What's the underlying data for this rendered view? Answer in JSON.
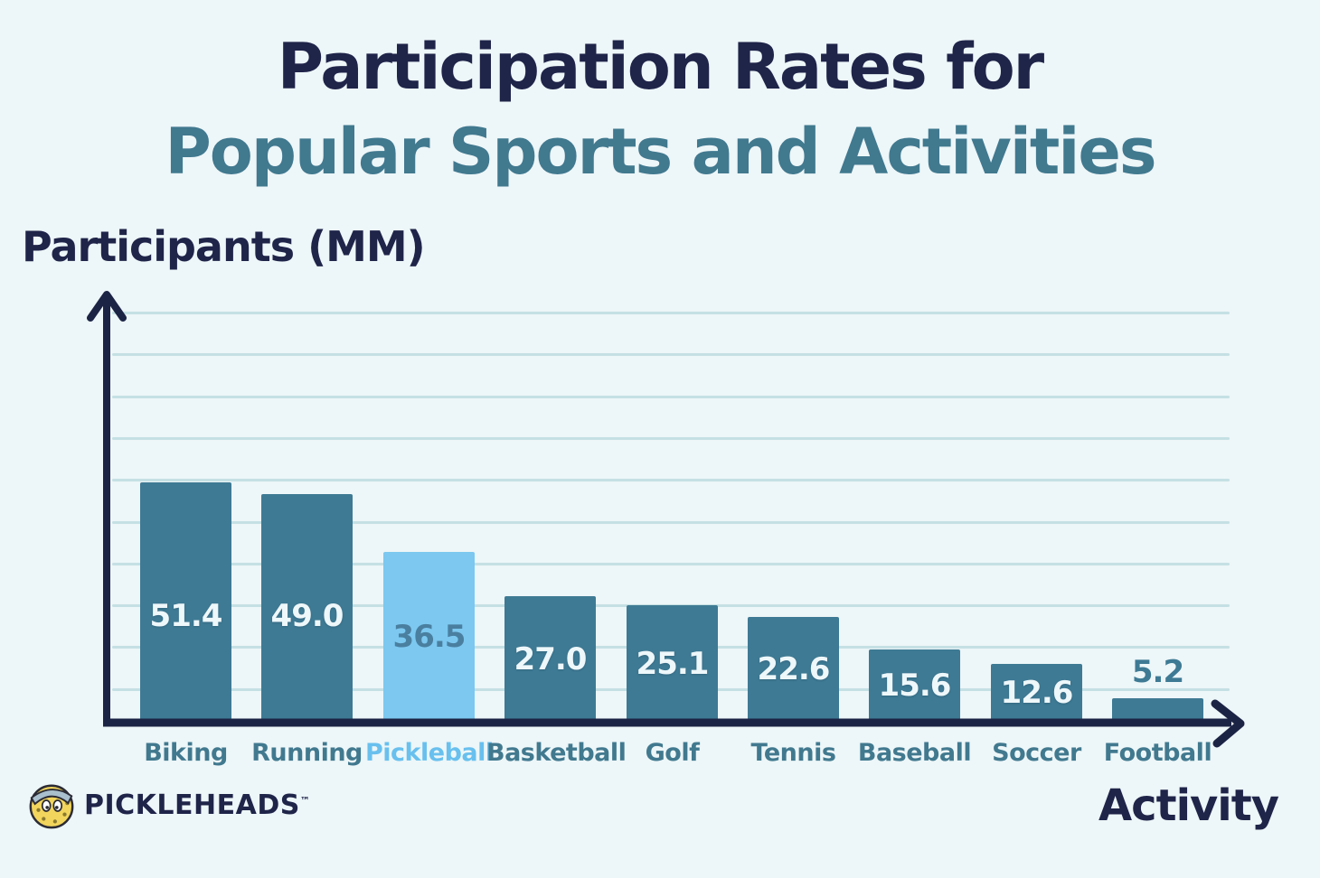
{
  "title": {
    "line1": "Participation Rates for",
    "line2": "Popular Sports and Activities"
  },
  "axes": {
    "y_label": "Participants (MM)",
    "x_label": "Activity"
  },
  "brand": {
    "display": "PICKLEHEADS",
    "tm": "™",
    "logo_icon": "pickleball-face-icon"
  },
  "chart_data": {
    "type": "bar",
    "title": "Participation Rates for Popular Sports and Activities",
    "xlabel": "Activity",
    "ylabel": "Participants (MM)",
    "categories": [
      "Biking",
      "Running",
      "Pickleball",
      "Basketball",
      "Golf",
      "Tennis",
      "Baseball",
      "Soccer",
      "Football"
    ],
    "values": [
      51.4,
      49.0,
      36.5,
      27.0,
      25.1,
      22.6,
      15.6,
      12.6,
      5.2
    ],
    "highlight_index": 2,
    "highlight_category": "Pickleball",
    "ylim": [
      0,
      88
    ],
    "grid": true,
    "gridline_count": 10,
    "legend_position": "none",
    "colors": {
      "bar": "#3e7a94",
      "highlight_bar": "#7cc8f0",
      "value_label": "#eef7fa",
      "highlight_value_label": "#4a7fa0",
      "outside_value_label": "#3e7a94",
      "category_label": "#41798f",
      "highlight_category_label": "#68c0ee",
      "axis": "#1c2445",
      "gridline": "#c5e0e4",
      "title_line1": "#1f2449",
      "title_line2": "#41798f",
      "background": "#edf6f8"
    }
  }
}
